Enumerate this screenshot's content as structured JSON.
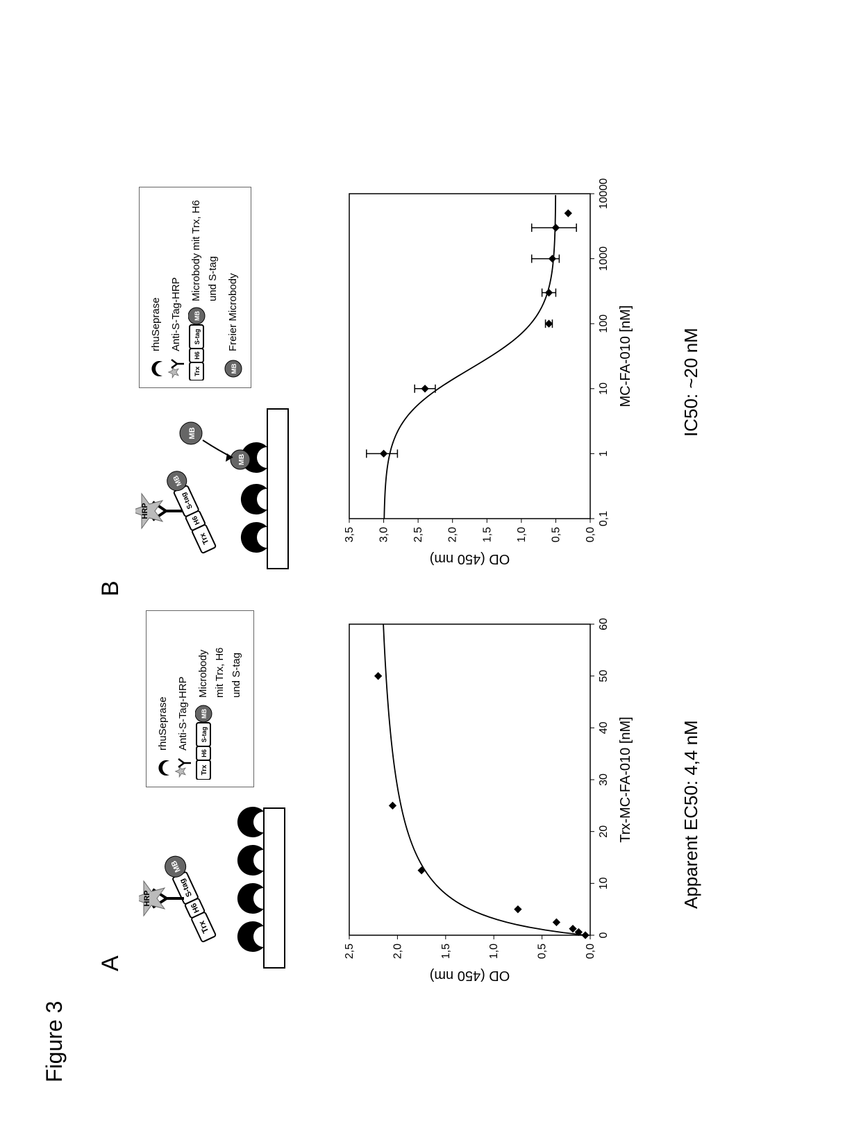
{
  "figure": {
    "title": "Figure 3"
  },
  "panelA": {
    "label": "A",
    "legend": {
      "items": [
        {
          "label": "rhuSeprase",
          "icon": "crescent"
        },
        {
          "label": "Anti-S-Tag-HRP",
          "icon": "ab-hrp"
        },
        {
          "label": "Microbody\nmit Trx, H6\nund S-tag",
          "icon": "construct"
        }
      ]
    },
    "construct_parts": [
      "Trx",
      "H6",
      "S-tag",
      "MB"
    ],
    "hrp_label": "HRP",
    "chart": {
      "type": "scatter-line",
      "x_label": "Trx-MC-FA-010 [nM]",
      "y_label": "OD (450 nm)",
      "xlim": [
        0,
        60
      ],
      "ylim": [
        0.0,
        2.5
      ],
      "xticks": [
        0,
        10,
        20,
        30,
        40,
        50,
        60
      ],
      "yticks": [
        0.0,
        0.5,
        1.0,
        1.5,
        2.0,
        2.5
      ],
      "ytick_labels": [
        "0,0",
        "0,5",
        "1,0",
        "1,5",
        "2,0",
        "2,5"
      ],
      "points": [
        {
          "x": 0,
          "y": 0.05
        },
        {
          "x": 0.6,
          "y": 0.12
        },
        {
          "x": 1.25,
          "y": 0.18
        },
        {
          "x": 2.5,
          "y": 0.35
        },
        {
          "x": 5,
          "y": 0.75
        },
        {
          "x": 12.5,
          "y": 1.75
        },
        {
          "x": 25,
          "y": 2.05
        },
        {
          "x": 50,
          "y": 2.2
        }
      ],
      "curve_color": "#000000",
      "point_color": "#000000",
      "bg": "#ffffff"
    },
    "caption": "Apparent EC50: 4,4 nM"
  },
  "panelB": {
    "label": "B",
    "legend": {
      "items": [
        {
          "label": "rhuSeprase",
          "icon": "crescent"
        },
        {
          "label": "Anti-S-Tag-HRP",
          "icon": "ab-hrp"
        },
        {
          "label": "Microbody mit Trx, H6\nund S-tag",
          "icon": "construct"
        },
        {
          "label": "Freier Microbody",
          "icon": "mb-free"
        }
      ]
    },
    "construct_parts": [
      "Trx",
      "H6",
      "S-tag",
      "MB"
    ],
    "mb_free_label": "MB",
    "hrp_label": "HRP",
    "chart": {
      "type": "scatter-line-log",
      "x_label": "MC-FA-010 [nM]",
      "y_label": "OD (450 nm)",
      "x_log": true,
      "xlim_log": [
        -1,
        4
      ],
      "ylim": [
        0.0,
        3.5
      ],
      "xticks_log": [
        -1,
        0,
        1,
        2,
        3,
        4
      ],
      "xtick_labels": [
        "0,1",
        "1",
        "10",
        "100",
        "1000",
        "10000"
      ],
      "yticks": [
        0.0,
        0.5,
        1.0,
        1.5,
        2.0,
        2.5,
        3.0,
        3.5
      ],
      "ytick_labels": [
        "0,0",
        "0,5",
        "1,0",
        "1,5",
        "2,0",
        "2,5",
        "3,0",
        "3,5"
      ],
      "points": [
        {
          "x": 1,
          "y": 3.0,
          "errL": 2.8,
          "errH": 3.25
        },
        {
          "x": 10,
          "y": 2.4,
          "errL": 2.25,
          "errH": 2.55
        },
        {
          "x": 100,
          "y": 0.6,
          "errL": 0.55,
          "errH": 0.65
        },
        {
          "x": 300,
          "y": 0.6,
          "errL": 0.5,
          "errH": 0.7
        },
        {
          "x": 1000,
          "y": 0.55,
          "errL": 0.45,
          "errH": 0.85
        },
        {
          "x": 3000,
          "y": 0.5,
          "errL": 0.2,
          "errH": 0.85
        },
        {
          "x": 5000,
          "y": 0.32
        }
      ],
      "curve_color": "#000000",
      "point_color": "#000000",
      "bg": "#ffffff"
    },
    "caption": "IC50: ~20 nM"
  },
  "colors": {
    "black": "#000000",
    "grey": "#777777",
    "light": "#cccccc",
    "white": "#ffffff",
    "mb_fill": "#666666",
    "construct_border": "#000000"
  }
}
